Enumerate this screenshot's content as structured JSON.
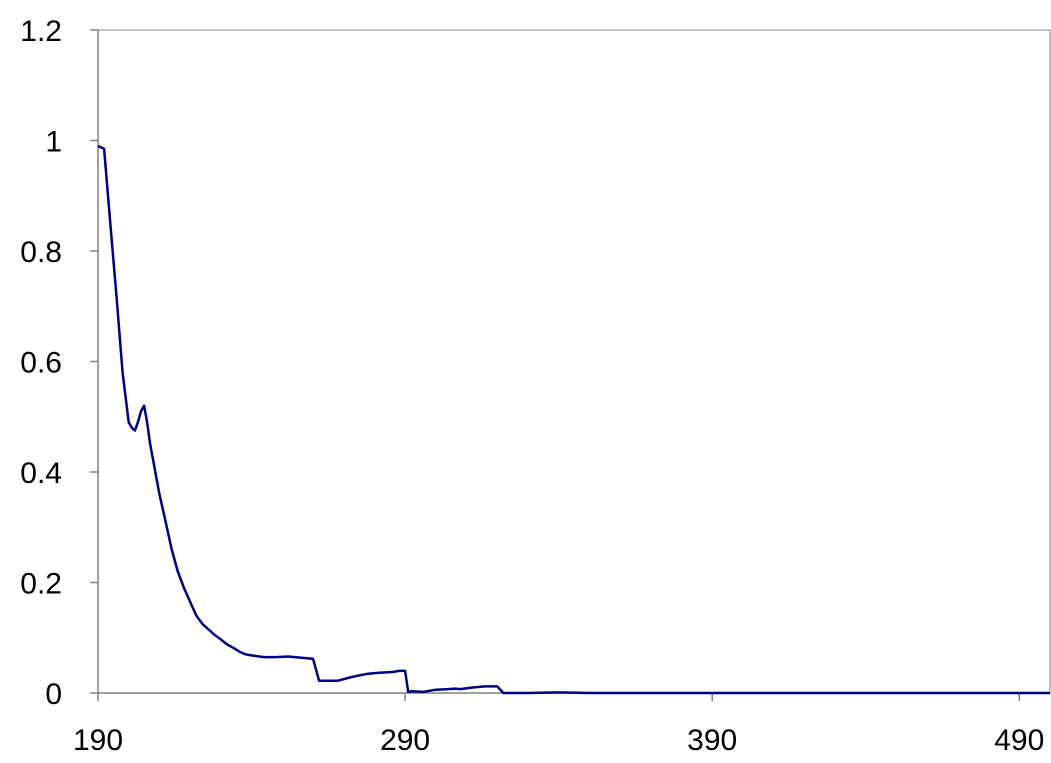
{
  "chart_data": {
    "type": "line",
    "title": "",
    "xlabel": "",
    "ylabel": "",
    "xlim": [
      190,
      500
    ],
    "ylim": [
      0,
      1.2
    ],
    "x_ticks": [
      190,
      290,
      390,
      490
    ],
    "x_tick_labels": [
      "190",
      "290",
      "390",
      "490"
    ],
    "y_ticks": [
      0,
      0.2,
      0.4,
      0.6,
      0.8,
      1,
      1.2
    ],
    "y_tick_labels": [
      "0",
      "0.2",
      "0.4",
      "0.6",
      "0.8",
      "1",
      "1.2"
    ],
    "grid": false,
    "line_color": "#000080",
    "series": [
      {
        "x": [
          190,
          192,
          194,
          196,
          198,
          200,
          201,
          202,
          203,
          204,
          205,
          206,
          207,
          208,
          210,
          212,
          214,
          216,
          218,
          220,
          222,
          224,
          226,
          228,
          230,
          232,
          234,
          236,
          238,
          240,
          244,
          248,
          252,
          254,
          256,
          258,
          260,
          262,
          268,
          272,
          276,
          278,
          282,
          286,
          288,
          290,
          291,
          292,
          296,
          300,
          304,
          306,
          308,
          312,
          316,
          320,
          322,
          330,
          340,
          350,
          360,
          370,
          380,
          390,
          400,
          410,
          420,
          430,
          440,
          450,
          460,
          470,
          480,
          490,
          500
        ],
        "y": [
          0.99,
          0.985,
          0.85,
          0.72,
          0.58,
          0.49,
          0.48,
          0.475,
          0.49,
          0.51,
          0.52,
          0.49,
          0.45,
          0.42,
          0.36,
          0.31,
          0.26,
          0.22,
          0.19,
          0.165,
          0.14,
          0.125,
          0.115,
          0.105,
          0.097,
          0.088,
          0.082,
          0.075,
          0.07,
          0.068,
          0.065,
          0.065,
          0.066,
          0.065,
          0.064,
          0.063,
          0.062,
          0.022,
          0.022,
          0.028,
          0.033,
          0.035,
          0.037,
          0.038,
          0.04,
          0.04,
          0.002,
          0.003,
          0.002,
          0.006,
          0.007,
          0.008,
          0.007,
          0.01,
          0.012,
          0.012,
          0.0,
          0.0,
          0.001,
          0.0,
          0.0,
          0.0,
          0.0,
          0.0,
          0.0,
          0.0,
          0.0,
          0.0,
          0.0,
          0.0,
          0.0,
          0.0,
          0.0,
          0.0,
          0.0
        ]
      }
    ]
  }
}
